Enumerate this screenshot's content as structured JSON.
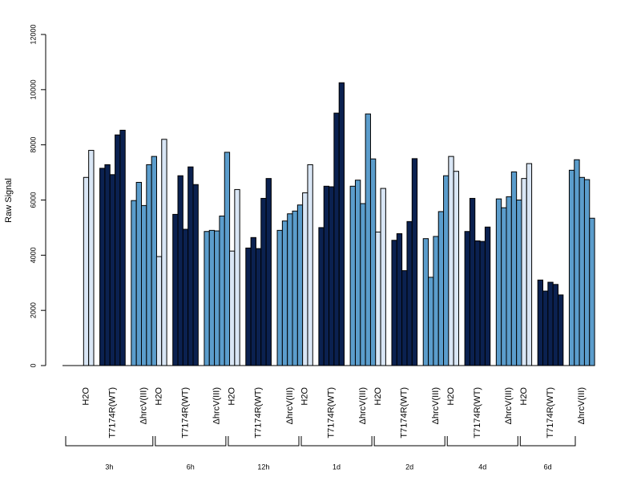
{
  "chart_data": {
    "type": "bar",
    "ylabel": "Raw Signal",
    "ylim": [
      0,
      12000
    ],
    "y_ticks": [
      0,
      2000,
      4000,
      6000,
      8000,
      10000,
      12000
    ],
    "condition_labels": [
      "H2O",
      "T7174R(WT)",
      "ΔhrcV(III)"
    ],
    "condition_colors": [
      "#d9e6f5",
      "#0b2150",
      "#5b9dcc"
    ],
    "groups": [
      {
        "label": "3h",
        "conditions": [
          {
            "name": "H2O",
            "values": [
              0,
              6820,
              7800
            ]
          },
          {
            "name": "T7174R(WT)",
            "values": [
              7150,
              7280,
              6920,
              8360,
              8530
            ]
          },
          {
            "name": "ΔhrcV(III)",
            "values": [
              5980,
              6640,
              5800,
              7280,
              7580
            ]
          }
        ]
      },
      {
        "label": "6h",
        "conditions": [
          {
            "name": "H2O",
            "values": [
              0,
              3950,
              8200
            ]
          },
          {
            "name": "T7174R(WT)",
            "values": [
              5480,
              6880,
              4940,
              7200,
              6560
            ]
          },
          {
            "name": "ΔhrcV(III)",
            "values": [
              4860,
              4900,
              4880,
              5420,
              7730
            ]
          }
        ]
      },
      {
        "label": "12h",
        "conditions": [
          {
            "name": "H2O",
            "values": [
              0,
              4150,
              6380
            ]
          },
          {
            "name": "T7174R(WT)",
            "values": [
              4260,
              4640,
              4240,
              6060,
              6780
            ]
          },
          {
            "name": "ΔhrcV(III)",
            "values": [
              4900,
              5240,
              5500,
              5600,
              5820
            ]
          }
        ]
      },
      {
        "label": "1d",
        "conditions": [
          {
            "name": "H2O",
            "values": [
              0,
              6260,
              7280
            ]
          },
          {
            "name": "T7174R(WT)",
            "values": [
              5000,
              6500,
              6480,
              9150,
              10250
            ]
          },
          {
            "name": "ΔhrcV(III)",
            "values": [
              6500,
              6720,
              5870,
              9120,
              7490
            ]
          }
        ]
      },
      {
        "label": "2d",
        "conditions": [
          {
            "name": "H2O",
            "values": [
              0,
              4840,
              6420
            ]
          },
          {
            "name": "T7174R(WT)",
            "values": [
              4540,
              4780,
              3440,
              5220,
              7500
            ]
          },
          {
            "name": "ΔhrcV(III)",
            "values": [
              4600,
              3200,
              4680,
              5580,
              6880
            ]
          }
        ]
      },
      {
        "label": "4d",
        "conditions": [
          {
            "name": "H2O",
            "values": [
              0,
              7580,
              7040
            ]
          },
          {
            "name": "T7174R(WT)",
            "values": [
              4860,
              6060,
              4520,
              4500,
              5020
            ]
          },
          {
            "name": "ΔhrcV(III)",
            "values": [
              6040,
              5720,
              6120,
              7020,
              6000
            ]
          }
        ]
      },
      {
        "label": "6d",
        "conditions": [
          {
            "name": "H2O",
            "values": [
              0,
              6780,
              7320
            ]
          },
          {
            "name": "T7174R(WT)",
            "values": [
              3100,
              2700,
              3020,
              2940,
              2560
            ]
          },
          {
            "name": "ΔhrcV(III)",
            "values": [
              7080,
              7460,
              6820,
              6740,
              5340
            ]
          }
        ]
      }
    ],
    "grid": false,
    "legend": "none"
  }
}
